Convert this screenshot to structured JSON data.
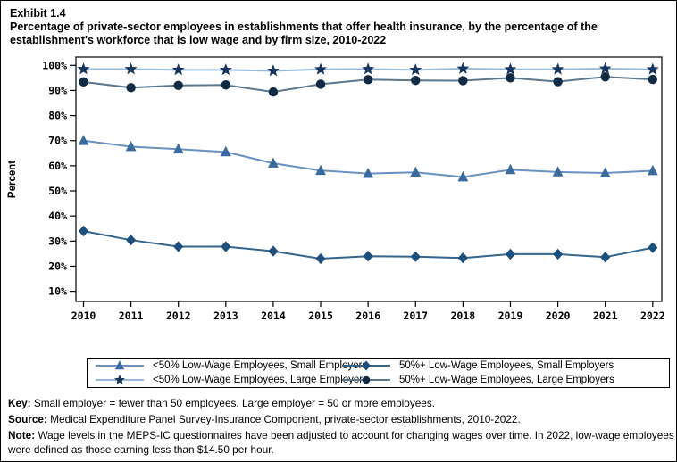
{
  "header": {
    "exhibit_label": "Exhibit 1.4",
    "title": "Percentage of private-sector employees in establishments that offer health insurance, by the percentage of the establishment's workforce that is low wage and by firm size,  2010-2022"
  },
  "chart_data": {
    "type": "line",
    "title": "Percentage of private-sector employees in establishments that offer health insurance, by the percentage of the establishment's workforce that is low wage and by firm size, 2010-2022",
    "xlabel": "",
    "ylabel": "Percent",
    "x": [
      2010,
      2011,
      2012,
      2013,
      2014,
      2015,
      2016,
      2017,
      2018,
      2019,
      2020,
      2021,
      2022
    ],
    "ylim": [
      10,
      100
    ],
    "yticks": [
      10,
      20,
      30,
      40,
      50,
      60,
      70,
      80,
      90,
      100
    ],
    "ytick_labels": [
      "10%",
      "20%",
      "30%",
      "40%",
      "50%",
      "60%",
      "70%",
      "80%",
      "90%",
      "100%"
    ],
    "grid": false,
    "legend_position": "bottom",
    "series": [
      {
        "name": "<50% Low-Wage Employees, Small Employers",
        "marker": "triangle",
        "marker_color": "#3a6b9f",
        "line_color": "#6992c3",
        "values": [
          70.0,
          67.6,
          66.6,
          65.5,
          61.0,
          58.1,
          56.9,
          57.4,
          55.5,
          58.4,
          57.5,
          57.1,
          58.0
        ]
      },
      {
        "name": "<50% Low-Wage Employees, Large Employers",
        "marker": "star",
        "marker_color": "#17365d",
        "line_color": "#9ab9d9",
        "values": [
          98.5,
          98.5,
          98.2,
          98.2,
          97.8,
          98.4,
          98.5,
          98.2,
          98.7,
          98.4,
          98.4,
          98.7,
          98.4
        ]
      },
      {
        "name": "50%+ Low-Wage Employees, Small Employers",
        "marker": "diamond",
        "marker_color": "#1d4f7c",
        "line_color": "#33658e",
        "values": [
          34.0,
          30.4,
          27.8,
          27.8,
          26.0,
          23.0,
          24.0,
          23.8,
          23.3,
          24.8,
          24.8,
          23.6,
          27.4
        ]
      },
      {
        "name": "50%+ Low-Wage Employees, Large Employers",
        "marker": "circle",
        "marker_color": "#112b45",
        "line_color": "#5b788f",
        "values": [
          93.4,
          91.1,
          92.0,
          92.2,
          89.4,
          92.5,
          94.3,
          94.0,
          93.9,
          95.0,
          93.5,
          95.4,
          94.4
        ]
      }
    ]
  },
  "footer": {
    "key_label": "Key:",
    "key_text": "Small employer = fewer than 50 employees. Large employer = 50 or more employees.",
    "source_label": "Source:",
    "source_text": "Medical Expenditure Panel Survey-Insurance Component, private-sector establishments, 2010-2022.",
    "note_label": "Note:",
    "note_text": "Wage levels in the MEPS-IC questionnaires have been adjusted to account for changing wages over time. In 2022, low-wage employees were defined as those earning less than $14.50 per hour."
  }
}
